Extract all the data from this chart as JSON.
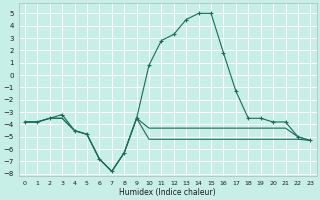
{
  "xlabel": "Humidex (Indice chaleur)",
  "bg_color": "#c8eee8",
  "grid_color": "#ffffff",
  "line_color": "#1a6b5a",
  "xlim": [
    -0.5,
    23.5
  ],
  "ylim": [
    -8.2,
    5.8
  ],
  "xticks": [
    0,
    1,
    2,
    3,
    4,
    5,
    6,
    7,
    8,
    9,
    10,
    11,
    12,
    13,
    14,
    15,
    16,
    17,
    18,
    19,
    20,
    21,
    22,
    23
  ],
  "yticks": [
    -8,
    -7,
    -6,
    -5,
    -4,
    -3,
    -2,
    -1,
    0,
    1,
    2,
    3,
    4,
    5
  ],
  "upper_x": [
    0,
    1,
    2,
    3,
    4,
    5,
    6,
    7,
    8,
    9,
    10,
    11,
    12,
    13,
    14,
    15,
    16,
    17,
    18,
    19,
    20,
    21,
    22,
    23
  ],
  "upper_y": [
    -3.8,
    -3.8,
    -3.5,
    -3.2,
    -4.5,
    -4.8,
    -6.8,
    -7.8,
    -6.3,
    -3.5,
    0.8,
    2.8,
    3.3,
    4.5,
    5.0,
    5.0,
    1.8,
    -1.3,
    -3.5,
    -3.5,
    -3.8,
    -3.8,
    -5.0,
    -5.3
  ],
  "mid_x": [
    0,
    1,
    2,
    3,
    4,
    5,
    6,
    7,
    8,
    9,
    10,
    11,
    12,
    13,
    14,
    15,
    16,
    17,
    18,
    19,
    20,
    21,
    22,
    23
  ],
  "mid_y": [
    -3.8,
    -3.8,
    -3.5,
    -3.5,
    -4.5,
    -4.8,
    -6.8,
    -7.8,
    -6.3,
    -3.5,
    -4.3,
    -4.3,
    -4.3,
    -4.3,
    -4.3,
    -4.3,
    -4.3,
    -4.3,
    -4.3,
    -4.3,
    -4.3,
    -4.3,
    -5.0,
    -5.3
  ],
  "low_x": [
    0,
    1,
    2,
    3,
    4,
    5,
    6,
    7,
    8,
    9,
    10,
    11,
    12,
    13,
    14,
    15,
    16,
    17,
    18,
    19,
    20,
    21,
    22,
    23
  ],
  "low_y": [
    -3.8,
    -3.8,
    -3.5,
    -3.5,
    -4.5,
    -4.8,
    -6.8,
    -7.8,
    -6.3,
    -3.5,
    -5.2,
    -5.2,
    -5.2,
    -5.2,
    -5.2,
    -5.2,
    -5.2,
    -5.2,
    -5.2,
    -5.2,
    -5.2,
    -5.2,
    -5.2,
    -5.3
  ]
}
